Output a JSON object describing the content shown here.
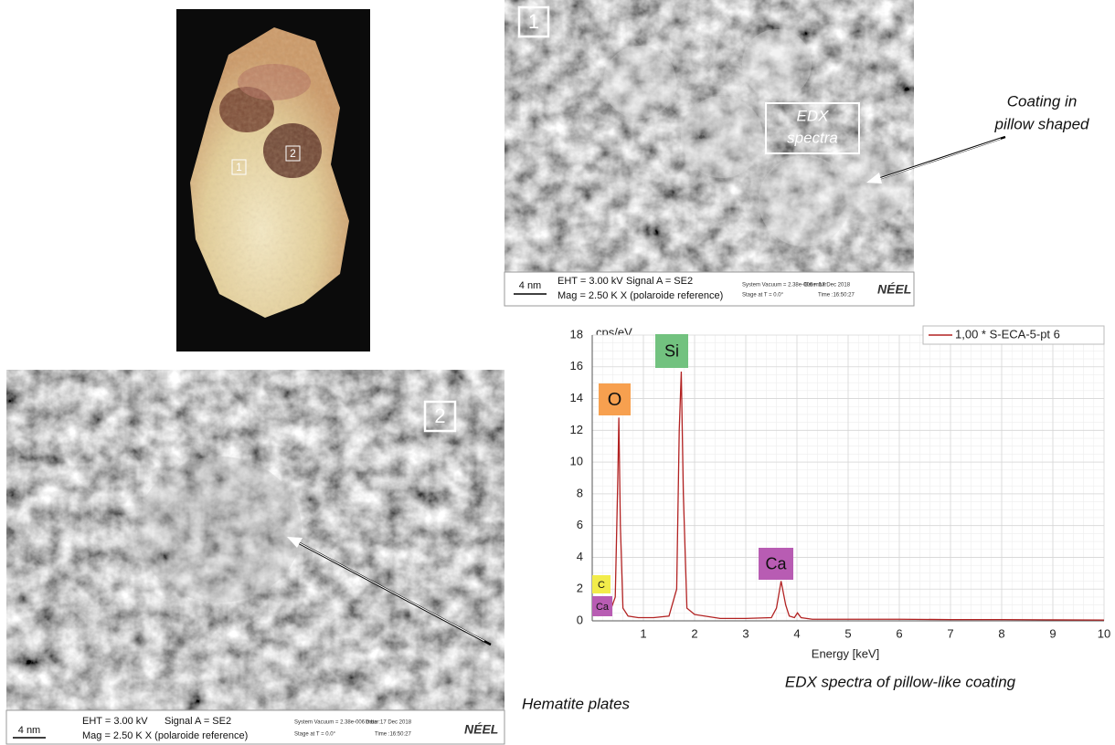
{
  "photo": {
    "labels": [
      "1",
      "2"
    ]
  },
  "sem_1": {
    "label": "1",
    "box_label": [
      "EDX",
      "spectra"
    ],
    "annotation": [
      "Coating in",
      "pillow shaped"
    ],
    "footer": {
      "scale": "4 nm",
      "eht": "EHT = 3.00 kV",
      "signal": "Signal A = SE2",
      "mag": "Mag = 2.50 K X (polaroide reference)",
      "vacuum": "System Vacuum = 2.38e-006 mbar",
      "date": "Date :17 Dec 2018",
      "stage": "Stage at T = 0.0°",
      "time": "Time :16:50:27",
      "logo": "NÉEL"
    }
  },
  "sem_2": {
    "label": "2",
    "annotation": "Hematite plates",
    "footer": {
      "scale": "4 nm",
      "eht": "EHT = 3.00 kV",
      "signal": "Signal A = SE2",
      "mag": "Mag = 2.50 K X (polaroide reference)",
      "vacuum": "System Vacuum = 2.38e-006 mbar",
      "date": "Date :17 Dec 2018",
      "stage": "Stage at T = 0.0°",
      "time": "Time :16:50:27",
      "logo": "NÉEL"
    }
  },
  "chart_data": {
    "type": "line",
    "y_label": "cps/eV",
    "x_label": "Energy [keV]",
    "caption": "EDX spectra of pillow-like coating",
    "x": [
      0.1,
      0.2,
      0.28,
      0.35,
      0.45,
      0.5,
      0.52,
      0.55,
      0.6,
      0.7,
      0.9,
      1.2,
      1.5,
      1.65,
      1.7,
      1.74,
      1.78,
      1.85,
      2.0,
      2.5,
      3.0,
      3.5,
      3.6,
      3.69,
      3.78,
      3.85,
      3.95,
      4.01,
      4.08,
      4.3,
      5,
      6,
      7,
      8,
      9,
      10
    ],
    "series": [
      {
        "name": "1,00 * S-ECA-5-pt 6",
        "color": "#b22222",
        "values": [
          0.3,
          0.6,
          1.2,
          0.6,
          1.5,
          9,
          12.8,
          6,
          0.8,
          0.3,
          0.2,
          0.2,
          0.3,
          2,
          12,
          15.7,
          8,
          0.8,
          0.4,
          0.15,
          0.15,
          0.2,
          0.8,
          2.5,
          1.0,
          0.3,
          0.2,
          0.5,
          0.2,
          0.1,
          0.1,
          0.1,
          0.08,
          0.08,
          0.06,
          0.05
        ]
      }
    ],
    "xlim": [
      0,
      10
    ],
    "ylim": [
      0,
      18
    ],
    "xticks": [
      1,
      2,
      3,
      4,
      5,
      6,
      7,
      8,
      9,
      10
    ],
    "yticks": [
      0,
      2,
      4,
      6,
      8,
      10,
      12,
      14,
      16,
      18
    ],
    "grid": true,
    "legend": "upper right",
    "annotations": [
      {
        "text": "O",
        "color": "#f7a04f"
      },
      {
        "text": "Si",
        "color": "#72c27f"
      },
      {
        "text": "Ca",
        "color": "#b85cb3"
      },
      {
        "text": "C",
        "color": "#f2ec4a"
      },
      {
        "text": "Ca",
        "color": "#b85cb3"
      }
    ]
  }
}
